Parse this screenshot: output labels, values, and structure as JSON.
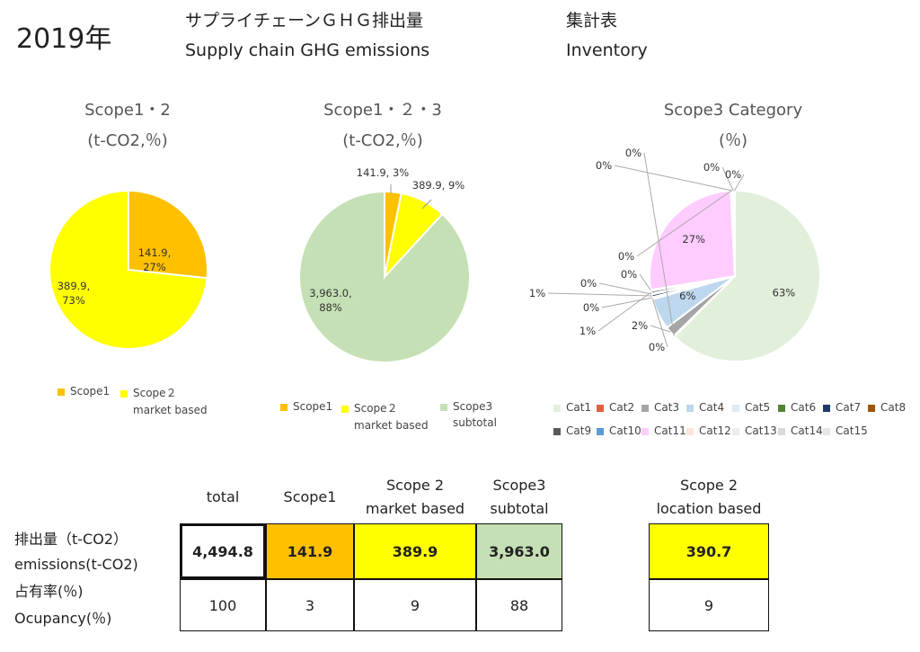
{
  "header": {
    "year": "2019年",
    "title_jp": "サプライチェーンＧＨＧ排出量",
    "title_en": "Supply chain GHG emissions",
    "inventory_jp": "集計表",
    "inventory_en": "Inventory"
  },
  "chart_data": [
    {
      "type": "pie",
      "title": "Scope1・2",
      "subtitle": "(t-CO2,％)",
      "slices": [
        {
          "name": "Scope1",
          "value": 141.9,
          "label": "141.9,\n27%",
          "color": "#FFC000"
        },
        {
          "name": "Scope２ market based",
          "value": 389.9,
          "label": "389.9,\n73%",
          "color": "#FFFF00"
        }
      ]
    },
    {
      "type": "pie",
      "title": "Scope1・２・3",
      "subtitle": "(t-CO2,％)",
      "slices": [
        {
          "name": "Scope1",
          "value": 141.9,
          "label": "141.9, 3%",
          "color": "#FFC000"
        },
        {
          "name": "Scope２ market based",
          "value": 389.9,
          "label": "389.9, 9%",
          "color": "#FFFF00"
        },
        {
          "name": "Scope3 subtotal",
          "value": 3963.0,
          "label": "3,963.0,\n88%",
          "color": "#C5E0B4"
        }
      ]
    },
    {
      "type": "pie",
      "title": "Scope3 Category",
      "subtitle": "(％)",
      "slices": [
        {
          "name": "Cat1",
          "value": 63,
          "label": "63%",
          "color": "#E2EFDA"
        },
        {
          "name": "Cat2",
          "value": 0.2,
          "label": "0%",
          "color": "#E06040"
        },
        {
          "name": "Cat3",
          "value": 2,
          "label": "2%",
          "color": "#A5A5A5"
        },
        {
          "name": "Cat4",
          "value": 6,
          "label": "6%",
          "color": "#BDD7EE"
        },
        {
          "name": "Cat5",
          "value": 0.2,
          "label": "0%",
          "color": "#DDEBF7"
        },
        {
          "name": "Cat6",
          "value": 0.2,
          "label": "0%",
          "color": "#548235"
        },
        {
          "name": "Cat7",
          "value": 0.5,
          "label": "1%",
          "color": "#203864"
        },
        {
          "name": "Cat8",
          "value": 0.2,
          "label": "0%",
          "color": "#9C5700"
        },
        {
          "name": "Cat9",
          "value": 0.5,
          "label": "1%",
          "color": "#595959"
        },
        {
          "name": "Cat10",
          "value": 0.2,
          "label": "0%",
          "color": "#5B9BD5"
        },
        {
          "name": "Cat11",
          "value": 27,
          "label": "27%",
          "color": "#FFCCFF"
        },
        {
          "name": "Cat12",
          "value": 0.2,
          "label": "0%",
          "color": "#FCE4D6"
        },
        {
          "name": "Cat13",
          "value": 0.2,
          "label": "0%",
          "color": "#EDEDED"
        },
        {
          "name": "Cat14",
          "value": 0.2,
          "label": "0%",
          "color": "#D9D9D9"
        },
        {
          "name": "Cat15",
          "value": 0.2,
          "label": "0%",
          "color": "#E7E6E6"
        }
      ]
    }
  ],
  "legends": {
    "chart1": [
      {
        "label": "Scope1",
        "color": "#FFC000"
      },
      {
        "label": "Scope２",
        "sub": "market based",
        "color": "#FFFF00"
      }
    ],
    "chart2": [
      {
        "label": "Scope1",
        "color": "#FFC000"
      },
      {
        "label": "Scope２",
        "sub": "market based",
        "color": "#FFFF00"
      },
      {
        "label": "Scope3",
        "sub": "subtotal",
        "color": "#C5E0B4"
      }
    ]
  },
  "table": {
    "headers": {
      "total": "total",
      "scope1": "Scope1",
      "scope2_a": "Scope 2",
      "scope2_b": "market based",
      "scope3_a": "Scope3",
      "scope3_b": "subtotal",
      "loc_a": "Scope 2",
      "loc_b": "location based"
    },
    "row_labels": {
      "emis_jp": "排出量（t-CO2）",
      "emis_en": "emissions(t-CO2)",
      "occ_jp": "占有率(％)",
      "occ_en": "Ocupancy(％)"
    },
    "emissions": {
      "total": "4,494.8",
      "scope1": "141.9",
      "scope2": "389.9",
      "scope3": "3,963.0",
      "location": "390.7"
    },
    "occupancy": {
      "total": "100",
      "scope1": "3",
      "scope2": "9",
      "scope3": "88",
      "location": "9"
    },
    "colors": {
      "scope1": "#FFC000",
      "scope2": "#FFFF00",
      "scope3": "#C5E0B4",
      "location": "#FFFF00"
    }
  }
}
